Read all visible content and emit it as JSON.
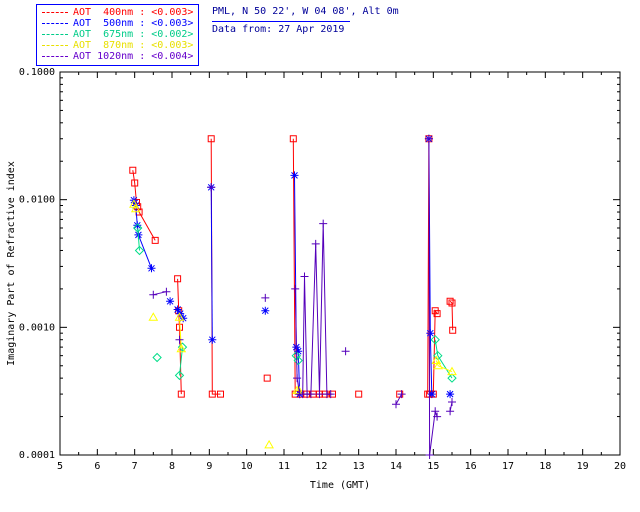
{
  "header": {
    "site_line": "PML, N 50 22', W 04 08', Alt 0m",
    "date_line": "Data from: 27 Apr 2019",
    "text_color": "#000099",
    "divider_color": "#0000ff"
  },
  "legend": {
    "border_color": "#0000ff",
    "items": [
      {
        "label": "AOT  400nm",
        "value": "<0.003>",
        "color": "#ff0000"
      },
      {
        "label": "AOT  500nm",
        "value": "<0.003>",
        "color": "#0000ff"
      },
      {
        "label": "AOT  675nm",
        "value": "<0.002>",
        "color": "#00cc88"
      },
      {
        "label": "AOT  870nm",
        "value": "<0.003>",
        "color": "#e8e000"
      },
      {
        "label": "AOT 1020nm",
        "value": "<0.004>",
        "color": "#6600cc"
      }
    ]
  },
  "chart_data": {
    "type": "scatter",
    "title": "",
    "xlabel": "Time (GMT)",
    "ylabel": "Imaginary Part of Refractive index",
    "x_scale": "linear",
    "y_scale": "log",
    "xlim": [
      5,
      20
    ],
    "ylim": [
      0.0001,
      0.1
    ],
    "x_ticks": [
      5,
      6,
      7,
      8,
      9,
      10,
      11,
      12,
      13,
      14,
      15,
      16,
      17,
      18,
      19,
      20
    ],
    "y_ticks": [
      0.0001,
      0.001,
      0.01,
      0.1
    ],
    "y_tick_labels": [
      "0.0001",
      "0.0010",
      "0.0100",
      "0.1000"
    ],
    "grid": false,
    "legend_position": "top-left-outside",
    "series": [
      {
        "name": "AOT 400nm",
        "wavelength": "400nm",
        "aot": "<0.003>",
        "color": "#ff0000",
        "marker": "square",
        "segments": [
          [
            [
              6.95,
              0.017
            ],
            [
              7.0,
              0.0135
            ],
            [
              7.05,
              0.0095
            ],
            [
              7.08,
              0.0088
            ],
            [
              7.12,
              0.008
            ],
            [
              7.55,
              0.0048
            ]
          ],
          [
            [
              8.15,
              0.0024
            ],
            [
              8.18,
              0.00135
            ],
            [
              8.2,
              0.001
            ],
            [
              8.25,
              0.0003
            ]
          ],
          [
            [
              9.05,
              0.03
            ],
            [
              9.08,
              0.0003
            ],
            [
              9.3,
              0.0003
            ]
          ],
          [
            [
              10.55,
              0.0004
            ]
          ],
          [
            [
              11.25,
              0.03
            ],
            [
              11.3,
              0.0003
            ],
            [
              11.45,
              0.0003
            ],
            [
              11.6,
              0.0003
            ],
            [
              11.78,
              0.0003
            ],
            [
              11.95,
              0.0003
            ],
            [
              12.1,
              0.0003
            ],
            [
              12.3,
              0.0003
            ]
          ],
          [
            [
              13.0,
              0.0003
            ]
          ],
          [
            [
              14.1,
              0.0003
            ]
          ],
          [
            [
              14.85,
              0.0003
            ],
            [
              14.88,
              0.03
            ],
            [
              14.9,
              0.0003
            ],
            [
              15.0,
              0.0003
            ],
            [
              15.05,
              0.00135
            ],
            [
              15.1,
              0.00128
            ]
          ],
          [
            [
              15.45,
              0.0016
            ],
            [
              15.5,
              0.00155
            ],
            [
              15.52,
              0.00095
            ]
          ]
        ]
      },
      {
        "name": "AOT 500nm",
        "wavelength": "500nm",
        "aot": "<0.003>",
        "color": "#0000ff",
        "marker": "asterisk",
        "segments": [
          [
            [
              6.98,
              0.0099
            ],
            [
              7.03,
              0.009
            ],
            [
              7.07,
              0.0063
            ],
            [
              7.1,
              0.0053
            ],
            [
              7.45,
              0.0029
            ]
          ],
          [
            [
              7.95,
              0.0016
            ]
          ],
          [
            [
              8.15,
              0.00138
            ],
            [
              8.22,
              0.00128
            ],
            [
              8.3,
              0.00118
            ]
          ],
          [
            [
              9.05,
              0.0125
            ],
            [
              9.08,
              0.0008
            ]
          ],
          [
            [
              10.5,
              0.00135
            ]
          ],
          [
            [
              11.28,
              0.0155
            ],
            [
              11.33,
              0.0007
            ],
            [
              11.38,
              0.00065
            ],
            [
              11.42,
              0.0003
            ]
          ],
          [
            [
              14.88,
              0.03
            ],
            [
              14.92,
              0.0009
            ],
            [
              14.96,
              0.0003
            ]
          ],
          [
            [
              15.45,
              0.0003
            ]
          ]
        ]
      },
      {
        "name": "AOT 675nm",
        "wavelength": "675nm",
        "aot": "<0.002>",
        "color": "#00dd88",
        "marker": "diamond",
        "segments": [
          [
            [
              7.08,
              0.006
            ],
            [
              7.13,
              0.004
            ]
          ],
          [
            [
              7.6,
              0.00058
            ]
          ],
          [
            [
              8.2,
              0.00042
            ],
            [
              8.28,
              0.0007
            ]
          ],
          [
            [
              11.33,
              0.0006
            ],
            [
              11.38,
              0.00055
            ]
          ],
          [
            [
              15.05,
              0.0008
            ],
            [
              15.12,
              0.0006
            ],
            [
              15.5,
              0.0004
            ]
          ]
        ]
      },
      {
        "name": "AOT 870nm",
        "wavelength": "870nm",
        "aot": "<0.003>",
        "color": "#ffff00",
        "marker": "triangle",
        "segments": [
          [
            [
              6.98,
              0.0092
            ],
            [
              7.03,
              0.0085
            ]
          ],
          [
            [
              7.5,
              0.0012
            ]
          ],
          [
            [
              8.2,
              0.0012
            ],
            [
              8.25,
              0.00068
            ]
          ],
          [
            [
              10.6,
              0.00012
            ]
          ],
          [
            [
              11.35,
              0.00032
            ],
            [
              11.4,
              0.00032
            ]
          ],
          [
            [
              15.08,
              0.00055
            ],
            [
              15.13,
              0.0005
            ],
            [
              15.5,
              0.00045
            ]
          ]
        ]
      },
      {
        "name": "AOT 1020nm",
        "wavelength": "1020nm",
        "aot": "<0.004>",
        "color": "#5500bb",
        "marker": "plus",
        "segments": [
          [
            [
              7.5,
              0.0018
            ],
            [
              7.85,
              0.0019
            ]
          ],
          [
            [
              8.2,
              0.0008
            ]
          ],
          [
            [
              9.05,
              0.0125
            ]
          ],
          [
            [
              10.5,
              0.0017
            ]
          ],
          [
            [
              11.3,
              0.002
            ],
            [
              11.35,
              0.0004
            ],
            [
              11.42,
              0.0003
            ],
            [
              11.5,
              0.0003
            ],
            [
              11.55,
              0.0025
            ],
            [
              11.62,
              0.0003
            ],
            [
              11.72,
              0.0003
            ],
            [
              11.85,
              0.0045
            ],
            [
              11.95,
              0.0003
            ],
            [
              12.05,
              0.0065
            ],
            [
              12.15,
              0.0003
            ],
            [
              12.25,
              0.0003
            ]
          ],
          [
            [
              12.65,
              0.00065
            ]
          ],
          [
            [
              14.0,
              0.00025
            ],
            [
              14.15,
              0.0003
            ]
          ],
          [
            [
              14.88,
              0.03
            ],
            [
              14.9,
              0.0001
            ],
            [
              15.05,
              0.00022
            ],
            [
              15.1,
              0.0002
            ]
          ],
          [
            [
              15.45,
              0.00022
            ],
            [
              15.5,
              0.00026
            ]
          ]
        ]
      }
    ]
  }
}
